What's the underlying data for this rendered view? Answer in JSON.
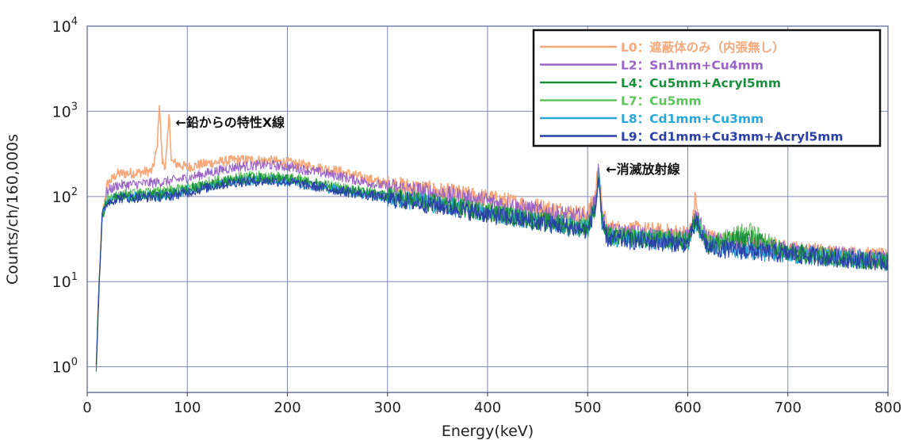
{
  "chart_data": {
    "type": "line",
    "title": "",
    "xlabel": "Energy(keV)",
    "ylabel": "Counts/ch/160,000s",
    "xlim": [
      0,
      800
    ],
    "ylim": [
      0.5,
      10000
    ],
    "yscale": "log",
    "grid": true,
    "legend_position": "top-right",
    "x_ticks": [
      "0",
      "100",
      "200",
      "300",
      "400",
      "500",
      "600",
      "700",
      "800"
    ],
    "y_ticks": [
      {
        "value": 1,
        "base": "10",
        "exp": "0"
      },
      {
        "value": 10,
        "base": "10",
        "exp": "1"
      },
      {
        "value": 100,
        "base": "10",
        "exp": "2"
      },
      {
        "value": 1000,
        "base": "10",
        "exp": "3"
      },
      {
        "value": 10000,
        "base": "10",
        "exp": "4"
      }
    ],
    "annotations": [
      {
        "text": "←鉛からの特性X線",
        "x": 85,
        "y": 750
      },
      {
        "text": "←消滅放射線",
        "x": 515,
        "y": 210
      }
    ],
    "series": [
      {
        "name": "L0：遮蔽体のみ（内張無し）",
        "color": "#f6a87a",
        "x": [
          9,
          12,
          15,
          20,
          30,
          50,
          65,
          70,
          72,
          75,
          78,
          80,
          82,
          84,
          86,
          90,
          100,
          120,
          150,
          180,
          200,
          250,
          300,
          350,
          400,
          450,
          500,
          508,
          511,
          514,
          520,
          550,
          600,
          605,
          608,
          611,
          620,
          650,
          700,
          750,
          800
        ],
        "values": [
          1,
          10,
          60,
          140,
          185,
          190,
          200,
          380,
          1250,
          260,
          230,
          400,
          1000,
          260,
          250,
          240,
          220,
          245,
          270,
          265,
          250,
          200,
          140,
          115,
          95,
          75,
          60,
          110,
          260,
          70,
          42,
          40,
          36,
          50,
          110,
          36,
          33,
          28,
          24,
          21,
          19
        ]
      },
      {
        "name": "L2：Sn1mm+Cu4mm",
        "color": "#9a63c8",
        "x": [
          9,
          12,
          15,
          20,
          30,
          50,
          80,
          100,
          130,
          150,
          180,
          200,
          250,
          300,
          350,
          400,
          450,
          500,
          508,
          511,
          514,
          520,
          550,
          600,
          608,
          620,
          700,
          800
        ],
        "values": [
          1,
          10,
          60,
          115,
          135,
          140,
          150,
          165,
          200,
          225,
          235,
          225,
          175,
          130,
          108,
          88,
          68,
          55,
          90,
          210,
          60,
          38,
          36,
          32,
          60,
          30,
          23,
          18
        ]
      },
      {
        "name": "L4：Cu5mm+Acryl5mm",
        "color": "#1a8f3c",
        "x": [
          9,
          12,
          15,
          20,
          30,
          50,
          80,
          100,
          130,
          150,
          180,
          200,
          250,
          300,
          350,
          400,
          450,
          500,
          508,
          511,
          514,
          520,
          550,
          600,
          608,
          620,
          660,
          700,
          800
        ],
        "values": [
          1,
          10,
          60,
          90,
          100,
          102,
          108,
          120,
          145,
          160,
          165,
          160,
          125,
          100,
          82,
          65,
          52,
          42,
          80,
          190,
          50,
          34,
          32,
          30,
          55,
          27,
          33,
          22,
          17
        ]
      },
      {
        "name": "L7：Cu5mm",
        "color": "#5cc45c",
        "x": [
          9,
          12,
          15,
          20,
          30,
          50,
          80,
          100,
          130,
          150,
          180,
          200,
          250,
          300,
          350,
          400,
          450,
          500,
          508,
          511,
          514,
          520,
          550,
          600,
          608,
          620,
          660,
          700,
          800
        ],
        "values": [
          1,
          10,
          60,
          95,
          105,
          108,
          115,
          128,
          155,
          170,
          175,
          168,
          130,
          103,
          84,
          67,
          53,
          43,
          80,
          195,
          52,
          35,
          33,
          30,
          55,
          27,
          40,
          22,
          17
        ]
      },
      {
        "name": "L8：Cd1mm+Cu3mm",
        "color": "#29a8d8",
        "x": [
          9,
          12,
          15,
          20,
          30,
          50,
          80,
          100,
          130,
          150,
          180,
          200,
          250,
          300,
          350,
          400,
          450,
          500,
          508,
          511,
          514,
          520,
          550,
          600,
          608,
          620,
          700,
          800
        ],
        "values": [
          1,
          10,
          60,
          88,
          98,
          100,
          105,
          118,
          140,
          152,
          158,
          152,
          120,
          97,
          80,
          64,
          51,
          41,
          78,
          185,
          50,
          33,
          31,
          29,
          52,
          26,
          21,
          17
        ]
      },
      {
        "name": "L9：Cd1mm+Cu3mm+Acryl5mm",
        "color": "#2b3fa8",
        "x": [
          9,
          12,
          15,
          20,
          30,
          50,
          80,
          100,
          130,
          150,
          180,
          200,
          250,
          300,
          350,
          400,
          450,
          500,
          508,
          511,
          514,
          520,
          550,
          600,
          608,
          620,
          700,
          800
        ],
        "values": [
          1,
          10,
          60,
          85,
          95,
          97,
          100,
          112,
          135,
          148,
          152,
          148,
          118,
          95,
          78,
          62,
          50,
          40,
          76,
          180,
          48,
          32,
          30,
          28,
          50,
          25,
          21,
          17
        ]
      }
    ]
  }
}
